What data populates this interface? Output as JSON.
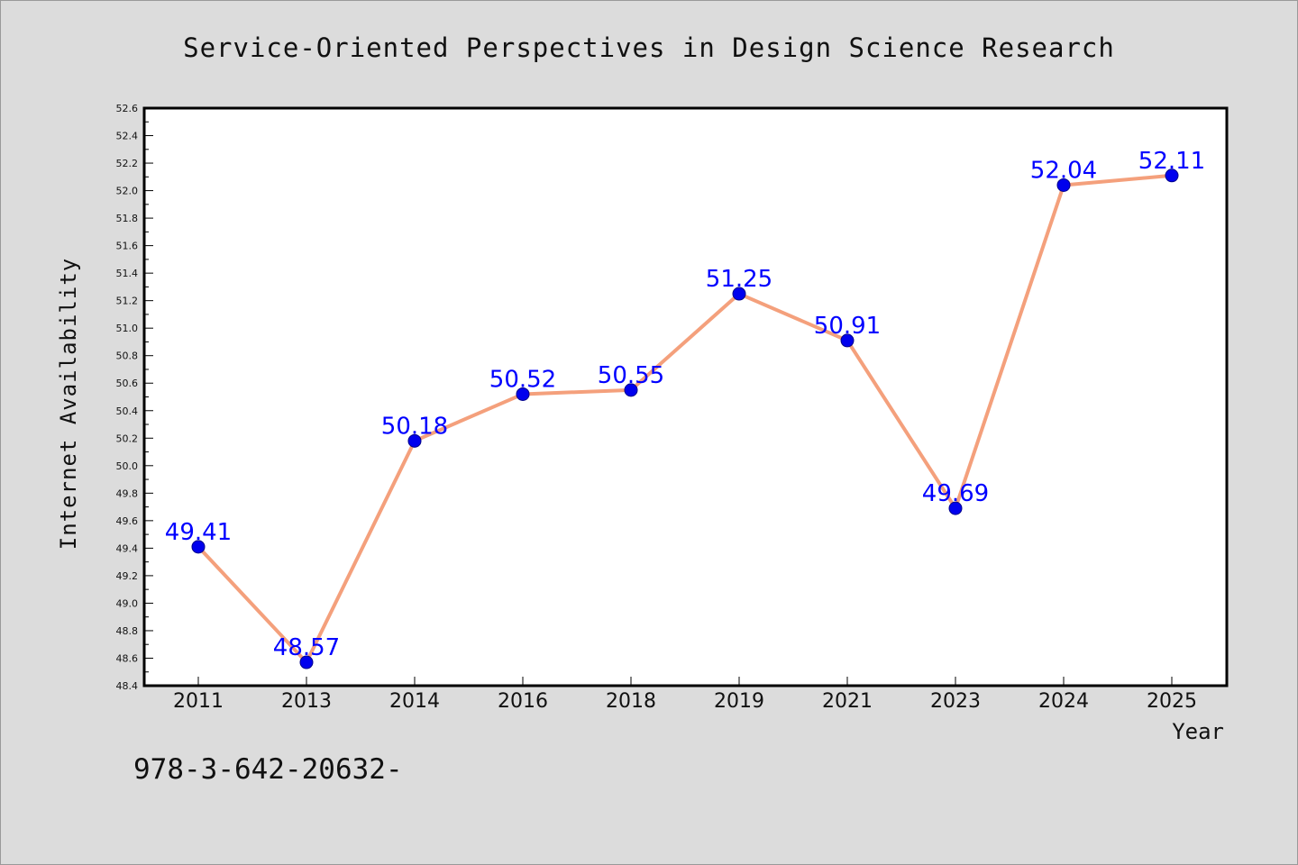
{
  "chart_data": {
    "type": "line",
    "title": "Service-Oriented Perspectives in Design Science Research",
    "xlabel": "Year",
    "ylabel": "Internet Availability",
    "categories": [
      "2011",
      "2013",
      "2014",
      "2016",
      "2018",
      "2019",
      "2021",
      "2023",
      "2024",
      "2025"
    ],
    "series": [
      {
        "values": [
          49.41,
          48.57,
          50.18,
          50.52,
          50.55,
          51.25,
          50.91,
          49.69,
          52.04,
          52.11
        ],
        "labels": [
          "49.41",
          "48.57",
          "50.18",
          "50.52",
          "50.55",
          "51.25",
          "50.91",
          "49.69",
          "52.04",
          "52.11"
        ],
        "line_color": "#f4a07c",
        "marker_color": "#0000ee",
        "label_color": "#0000ff"
      }
    ],
    "ylim": [
      48.4,
      52.6
    ],
    "y_ticks": [
      "48.4",
      "48.6",
      "48.8",
      "49.0",
      "49.2",
      "49.4",
      "49.6",
      "49.8",
      "50.0",
      "50.2",
      "50.4",
      "50.6",
      "50.8",
      "51.0",
      "51.2",
      "51.4",
      "51.6",
      "51.8",
      "52.0",
      "52.2",
      "52.4",
      "52.6"
    ],
    "grid": false,
    "legend": "none"
  },
  "footer_text": "978-3-642-20632-"
}
